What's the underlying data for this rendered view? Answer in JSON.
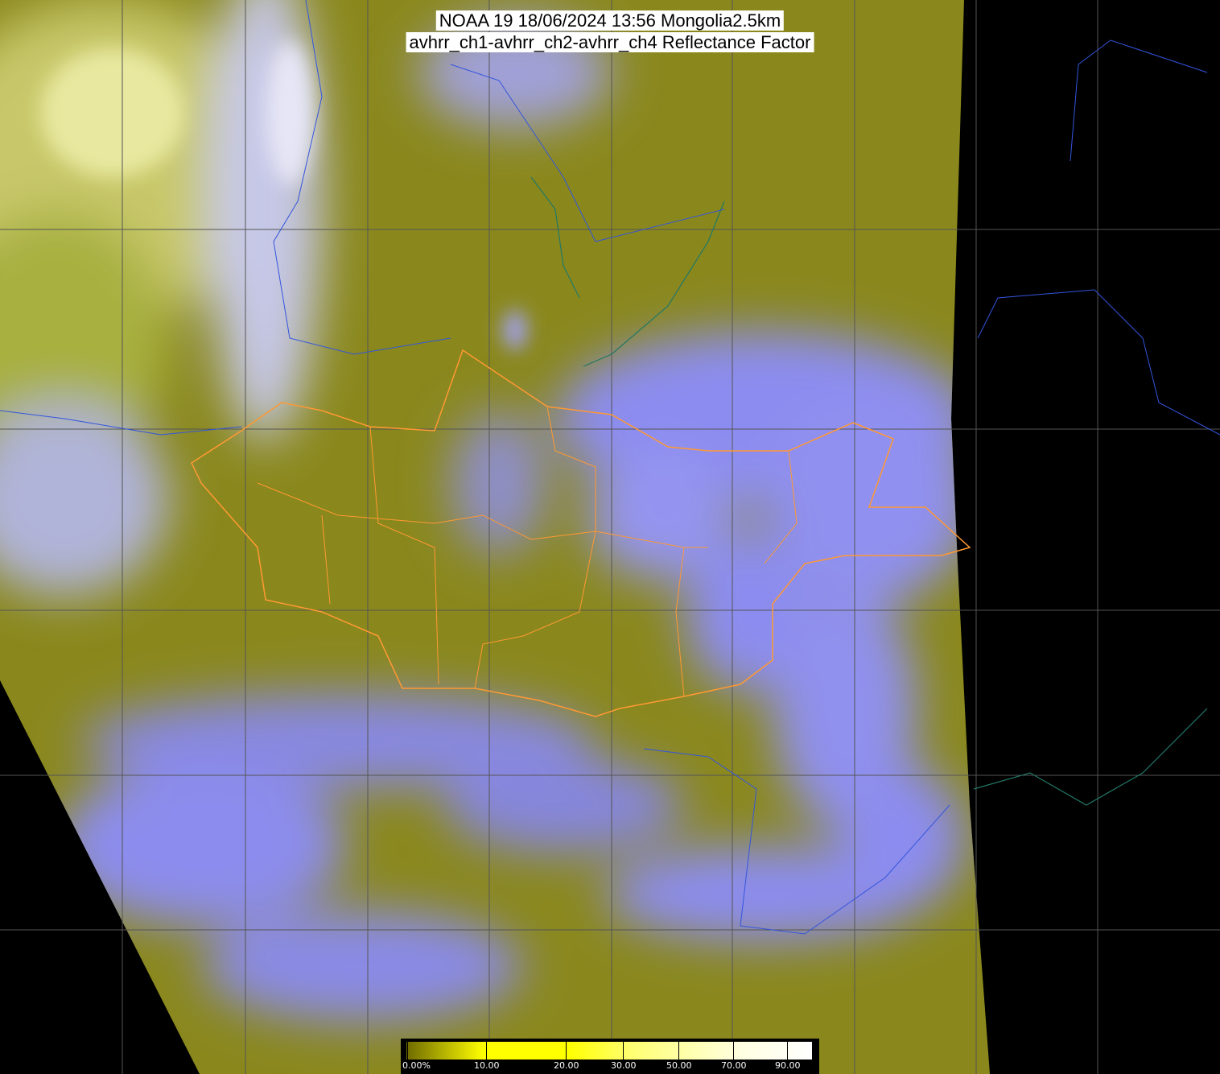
{
  "title": {
    "line1": "NOAA 19 18/06/2024 13:56 Mongolia2.5km",
    "line2": "avhrr_ch1-avhrr_ch2-avhrr_ch4 Reflectance Factor"
  },
  "colorbar": {
    "labels": [
      "0.00%",
      "10.00",
      "20.00",
      "30.00",
      "50.00",
      "70.00",
      "90.00"
    ],
    "stops": [
      0,
      10,
      20,
      30,
      50,
      70,
      90
    ],
    "colors": [
      "#7a7400",
      "#ffff00",
      "#ffff00",
      "#ffff80",
      "#ffffc0",
      "#ffffe6",
      "#ffffff"
    ]
  },
  "colors": {
    "land_surface": "#8c8a1c",
    "cloud": "#8c8cf0",
    "no_data": "#000000",
    "national_border": "#ff9933",
    "coastline_river": "#3355dd",
    "lakes": "#227766",
    "grid": "#555555"
  }
}
